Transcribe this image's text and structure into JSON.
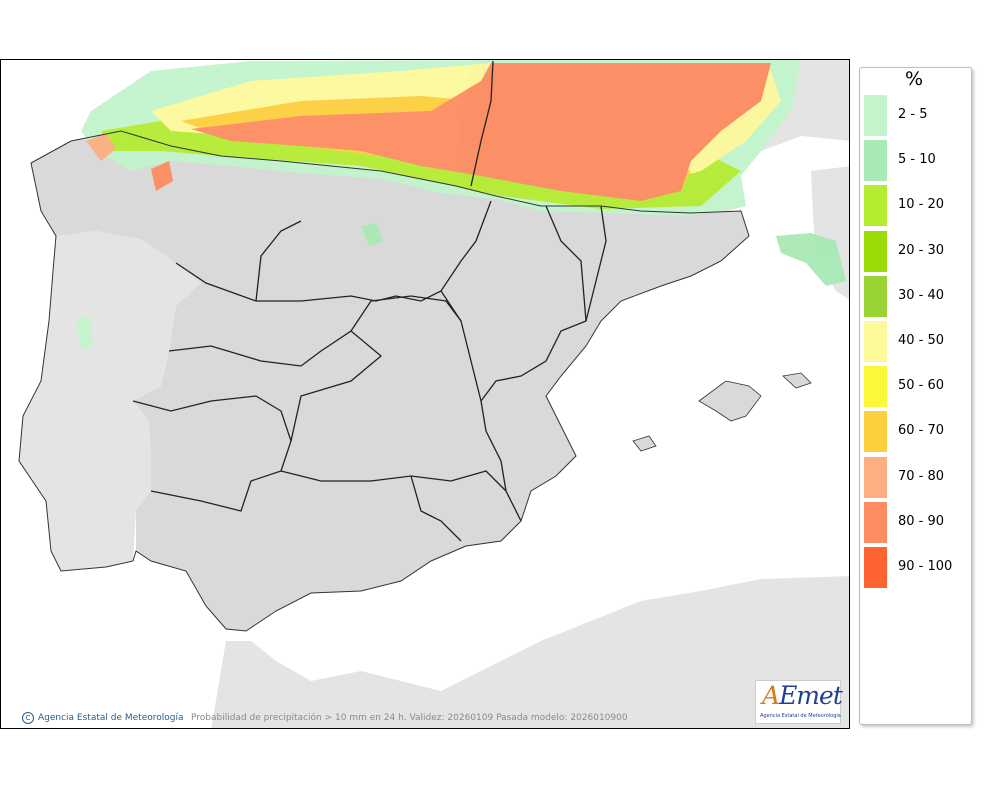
{
  "legend": {
    "unit": "%",
    "classes": [
      {
        "label": "2 - 5",
        "color": "#c2f5cc"
      },
      {
        "label": "5 - 10",
        "color": "#a9e9b5"
      },
      {
        "label": "10 - 20",
        "color": "#b4ec32"
      },
      {
        "label": "20 - 30",
        "color": "#9bdc08"
      },
      {
        "label": "30 - 40",
        "color": "#98d333"
      },
      {
        "label": "40 - 50",
        "color": "#fcf99b"
      },
      {
        "label": "50 - 60",
        "color": "#fbf739"
      },
      {
        "label": "60 - 70",
        "color": "#fccf3c"
      },
      {
        "label": "70 - 80",
        "color": "#fdaf82"
      },
      {
        "label": "80 - 90",
        "color": "#fd8c60"
      },
      {
        "label": "90 - 100",
        "color": "#ff6331"
      }
    ]
  },
  "footer": {
    "copyright": "Agencia Estatal de Meteorología",
    "caption": "Probabilidad de precipitación > 10 mm en 24 h. Validez: 20260109 Pasada modelo: 2026010900"
  },
  "logo": {
    "text": "AEmet",
    "subtitle": "Agencia Estatal de Meteorología"
  },
  "colors": {
    "land": "#d9d9d9",
    "sea": "#ffffff",
    "foreign_land": "#e4e4e4",
    "border": "#222222"
  }
}
